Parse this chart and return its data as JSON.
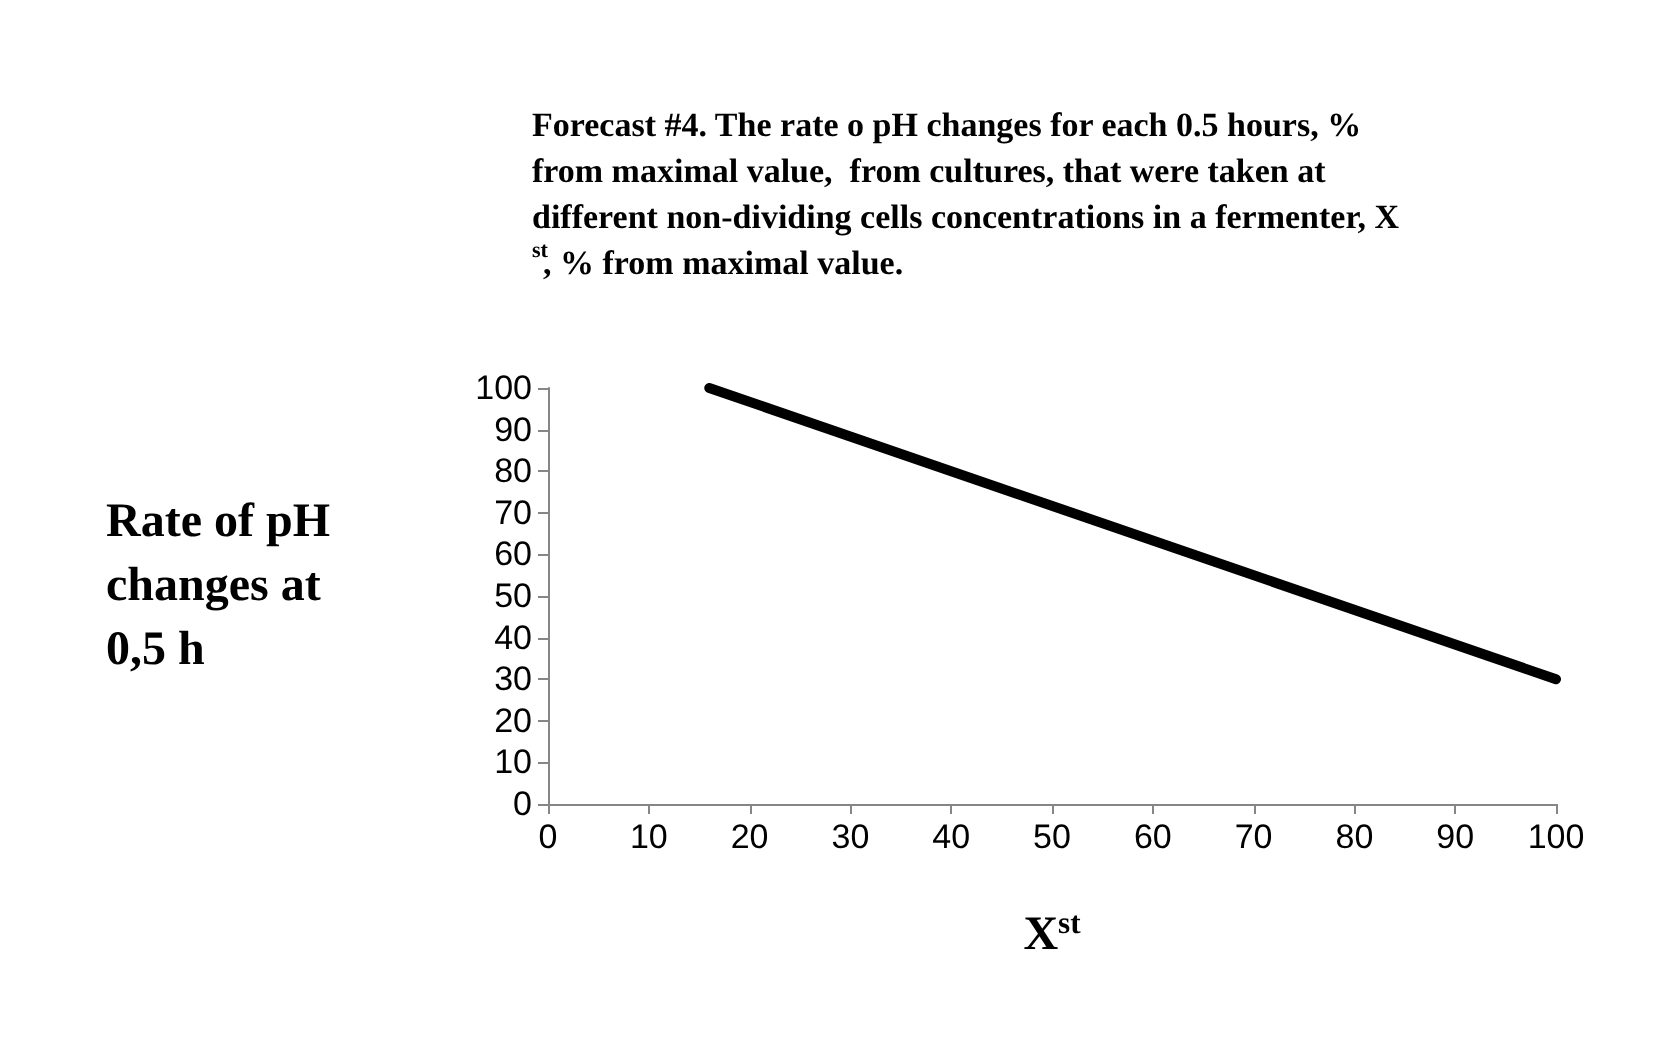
{
  "chart_data": {
    "type": "line",
    "title": "Forecast #4. The rate o pH changes for each 0.5 hours, % from maximal value,  from cultures, that were taken at different non-dividing cells concentrations in a fermenter, X$^{st}$, % from maximal value.",
    "xlabel": "X$^{st}$",
    "ylabel": "Rate of pH changes at 0,5 h",
    "x": [
      16,
      100
    ],
    "series": [
      {
        "color": "#000000",
        "values": [
          100,
          30
        ]
      }
    ],
    "xlim": [
      0,
      100
    ],
    "xticks": [
      0,
      10,
      20,
      30,
      40,
      50,
      60,
      70,
      80,
      90,
      100
    ],
    "ylim": [
      0,
      100
    ],
    "yticks": [
      0,
      10,
      20,
      30,
      40,
      50,
      60,
      70,
      80,
      90,
      100
    ],
    "grid": false,
    "marker": "none",
    "line_style": "solid"
  }
}
